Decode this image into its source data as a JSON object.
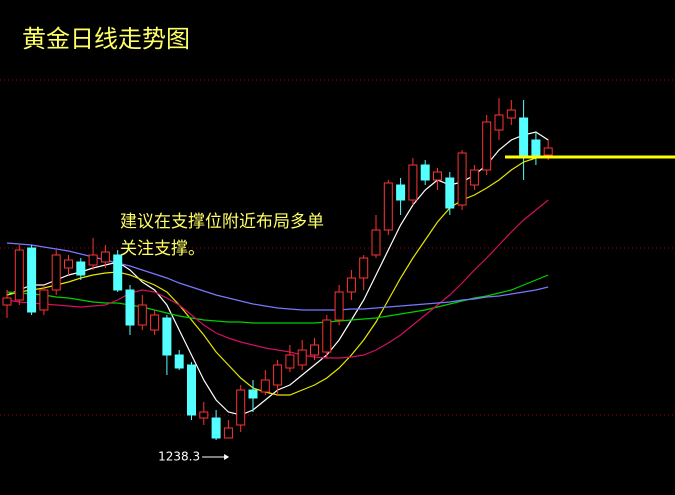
{
  "chart_data": {
    "type": "candlestick",
    "title": "黄金日线走势图",
    "annotation": [
      "建议在支撑位附近布局多单",
      "关注支撑。"
    ],
    "up_color": "#ff3232",
    "down_color": "#54ffff",
    "open": [
      1265.3,
      1266.3,
      1276.7,
      1264.3,
      1268.3,
      1272.7,
      1273.9,
      1273.3,
      1273.9,
      1275.3,
      1268.3,
      1261.3,
      1260.3,
      1262.7,
      1255.3,
      1253.3,
      1242.7,
      1242.7,
      1238.7,
      1241.3,
      1248.3,
      1247.9,
      1249.3,
      1252.7,
      1253.3,
      1255.3,
      1255.9,
      1262.3,
      1267.9,
      1270.7,
      1275.3,
      1280.3,
      1289.3,
      1286.3,
      1293.3,
      1290.3,
      1290.7,
      1285.3,
      1289.3,
      1292.3,
      1300.3,
      1302.7,
      1302.7,
      1298.3,
      1295.3
    ],
    "high": [
      1268.3,
      1277.3,
      1277.3,
      1269.3,
      1276.3,
      1275.3,
      1274.7,
      1278.7,
      1277.3,
      1276.3,
      1269.3,
      1267.3,
      1264.3,
      1263.3,
      1256.3,
      1253.9,
      1245.9,
      1244.3,
      1242.3,
      1249.3,
      1250.3,
      1252.3,
      1254.3,
      1257.3,
      1258.3,
      1258.7,
      1263.3,
      1269.3,
      1272.3,
      1275.3,
      1283.3,
      1290.3,
      1290.7,
      1294.7,
      1294.3,
      1292.7,
      1291.9,
      1296.3,
      1293.3,
      1303.3,
      1306.7,
      1306.3,
      1306.3,
      1299.9,
      1298.3
    ],
    "low": [
      1262.7,
      1265.3,
      1263.3,
      1263.3,
      1267.3,
      1271.3,
      1270.3,
      1272.3,
      1272.7,
      1267.9,
      1259.3,
      1260.3,
      1259.3,
      1251.3,
      1252.3,
      1242.3,
      1241.3,
      1238.3,
      1238.7,
      1239.9,
      1243.9,
      1247.3,
      1247.3,
      1251.9,
      1252.3,
      1254.3,
      1254.7,
      1261.3,
      1266.3,
      1268.3,
      1274.7,
      1279.3,
      1283.3,
      1285.3,
      1289.3,
      1288.3,
      1283.3,
      1284.3,
      1288.3,
      1291.3,
      1298.3,
      1301.3,
      1290.3,
      1293.3,
      1294.3
    ],
    "close": [
      1266.7,
      1276.3,
      1263.9,
      1268.3,
      1275.3,
      1274.3,
      1271.3,
      1275.3,
      1275.9,
      1268.3,
      1261.3,
      1265.3,
      1263.3,
      1255.3,
      1252.7,
      1243.3,
      1243.9,
      1238.7,
      1240.7,
      1248.3,
      1246.7,
      1250.3,
      1253.3,
      1255.3,
      1256.3,
      1257.3,
      1262.3,
      1267.9,
      1270.7,
      1274.7,
      1280.3,
      1289.7,
      1286.3,
      1293.3,
      1290.3,
      1291.9,
      1284.7,
      1295.7,
      1292.3,
      1301.9,
      1303.3,
      1304.3,
      1295.3,
      1294.7,
      1296.7
    ],
    "series": [
      {
        "color": "#ffffff",
        "values": [
          1267.3,
          1268.3,
          1269.3,
          1269.3,
          1270.3,
          1271.3,
          1271.9,
          1272.7,
          1273.3,
          1273.9,
          1272.3,
          1269.9,
          1268.3,
          1265.3,
          1260.3,
          1255.3,
          1250.3,
          1246.3,
          1243.9,
          1243.3,
          1244.3,
          1246.3,
          1248.3,
          1249.3,
          1251.3,
          1253.3,
          1255.3,
          1258.3,
          1262.3,
          1266.3,
          1271.3,
          1276.3,
          1281.3,
          1285.3,
          1288.3,
          1290.3,
          1289.3,
          1289.9,
          1291.3,
          1293.3,
          1296.3,
          1298.3,
          1299.3,
          1299.9,
          1298.3
        ]
      },
      {
        "color": "#e6e600",
        "values": [
          1267.3,
          1267.9,
          1268.3,
          1268.7,
          1269.3,
          1269.9,
          1270.7,
          1271.3,
          1271.7,
          1271.9,
          1271.3,
          1270.3,
          1269.3,
          1267.9,
          1265.3,
          1262.3,
          1259.3,
          1255.9,
          1253.3,
          1250.7,
          1248.7,
          1247.9,
          1247.3,
          1247.3,
          1248.3,
          1249.3,
          1250.7,
          1252.7,
          1255.3,
          1258.3,
          1261.9,
          1266.3,
          1270.7,
          1274.7,
          1278.3,
          1281.9,
          1284.7,
          1286.3,
          1287.3,
          1288.7,
          1290.3,
          1292.3,
          1293.9,
          1294.7,
          1294.9
        ]
      },
      {
        "color": "#00d000",
        "values": [
          1267.9,
          1267.7,
          1267.5,
          1267.3,
          1266.9,
          1266.7,
          1266.3,
          1265.9,
          1265.7,
          1265.7,
          1265.3,
          1264.9,
          1264.3,
          1263.7,
          1263.1,
          1262.7,
          1262.3,
          1262.1,
          1261.9,
          1261.9,
          1261.7,
          1261.7,
          1261.7,
          1261.7,
          1261.7,
          1261.7,
          1261.9,
          1262.1,
          1262.3,
          1262.5,
          1262.7,
          1263.1,
          1263.5,
          1263.9,
          1264.3,
          1264.9,
          1265.5,
          1266.1,
          1266.7,
          1267.1,
          1267.7,
          1268.3,
          1269.3,
          1270.3,
          1271.3
        ]
      },
      {
        "color": "#d01060",
        "values": [
          1266.3,
          1265.9,
          1265.7,
          1265.5,
          1265.3,
          1265.1,
          1264.9,
          1265.1,
          1265.3,
          1266.3,
          1267.7,
          1268.3,
          1267.9,
          1266.7,
          1265.3,
          1263.3,
          1261.3,
          1259.7,
          1258.7,
          1257.9,
          1257.3,
          1256.7,
          1256.3,
          1255.9,
          1255.3,
          1254.9,
          1254.7,
          1254.7,
          1254.9,
          1255.3,
          1256.3,
          1257.7,
          1259.3,
          1261.3,
          1263.3,
          1265.3,
          1267.3,
          1269.7,
          1272.3,
          1274.7,
          1277.3,
          1279.9,
          1282.3,
          1284.3,
          1286.3
        ]
      },
      {
        "color": "#7878ff",
        "values": [
          1277.7,
          1277.5,
          1277.3,
          1276.9,
          1276.5,
          1276.1,
          1275.5,
          1274.9,
          1274.3,
          1273.7,
          1273.1,
          1272.3,
          1271.5,
          1270.7,
          1269.7,
          1268.9,
          1268.1,
          1267.3,
          1266.7,
          1266.1,
          1265.5,
          1265.1,
          1264.7,
          1264.5,
          1264.3,
          1264.3,
          1264.3,
          1264.3,
          1264.5,
          1264.5,
          1264.7,
          1264.9,
          1265.1,
          1265.3,
          1265.5,
          1265.7,
          1265.9,
          1266.3,
          1266.5,
          1266.9,
          1267.1,
          1267.5,
          1267.9,
          1268.3,
          1268.9
        ]
      }
    ],
    "support_level": 1294.9,
    "support_color": "#ffff00"
  }
}
